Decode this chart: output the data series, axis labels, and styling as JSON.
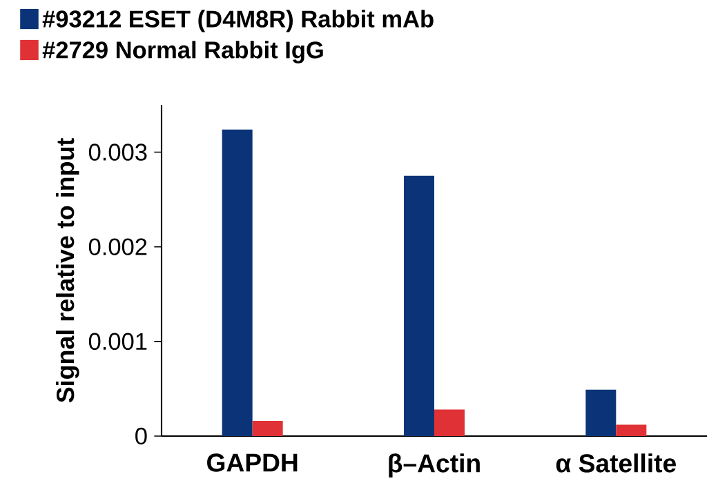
{
  "chart_data": {
    "type": "bar",
    "ylabel": "Signal relative to input",
    "categories": [
      "GAPDH",
      "β–Actin",
      "α Satellite"
    ],
    "series": [
      {
        "name": "#93212 ESET (D4M8R) Rabbit mAb",
        "color": "#0b3478",
        "values": [
          0.00324,
          0.00275,
          0.00049
        ]
      },
      {
        "name": "#2729 Normal Rabbit IgG",
        "color": "#e03236",
        "values": [
          0.00016,
          0.00028,
          0.00012
        ]
      }
    ],
    "ylim": [
      0,
      0.0035
    ],
    "yticks": [
      0,
      0.001,
      0.002,
      0.003
    ],
    "legend": "top left"
  }
}
